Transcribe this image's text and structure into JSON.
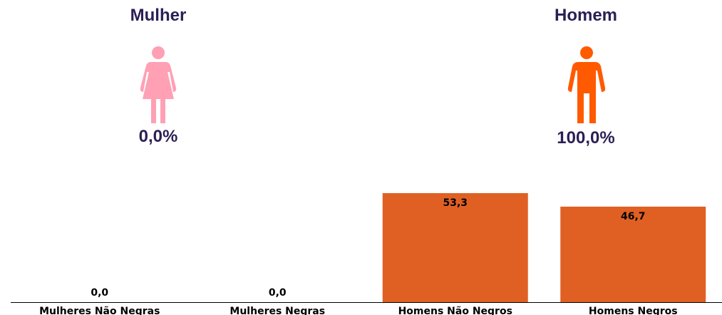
{
  "genders": [
    {
      "title": "Mulher",
      "percent": "0,0%",
      "icon": "female-person-icon",
      "color": "#ffa0b4"
    },
    {
      "title": "Homem",
      "percent": "100,0%",
      "icon": "male-person-icon",
      "color": "#ff5a00"
    }
  ],
  "chart_data": {
    "type": "bar",
    "categories": [
      "Mulheres Não Negras",
      "Mulheres Negras",
      "Homens Não Negros",
      "Homens Negros"
    ],
    "values": [
      0.0,
      0.0,
      53.3,
      46.7
    ],
    "value_labels": [
      "0,0",
      "0,0",
      "53,3",
      "46,7"
    ],
    "bar_color": "#e06024",
    "ylim": [
      0,
      53.3
    ],
    "grid": false
  }
}
